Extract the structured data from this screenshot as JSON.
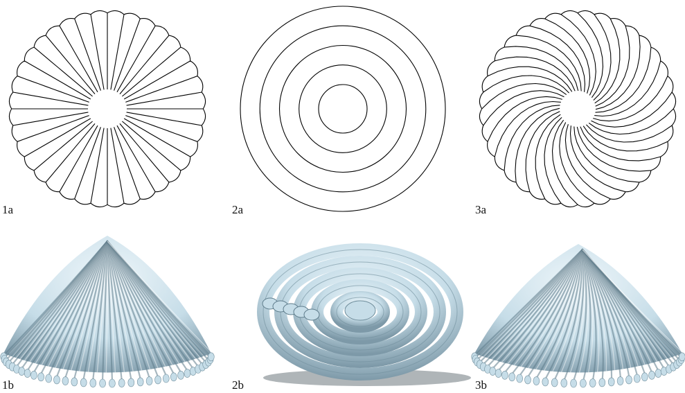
{
  "figure": {
    "panels": [
      {
        "id": "1a",
        "label": "1a",
        "pattern": "radial-petals",
        "petals": 36
      },
      {
        "id": "2a",
        "label": "2a",
        "pattern": "concentric-rings",
        "rings": 5
      },
      {
        "id": "3a",
        "label": "3a",
        "pattern": "spiral-petals",
        "petals": 36
      },
      {
        "id": "1b",
        "label": "1b",
        "render": "radial-ribbed-cone"
      },
      {
        "id": "2b",
        "label": "2b",
        "render": "concentric-coil-saddle"
      },
      {
        "id": "3b",
        "label": "3b",
        "render": "spiral-ribbed-cone"
      }
    ]
  },
  "colors": {
    "line": "#000000",
    "surface": "#c6dde8",
    "surface_dark": "#7d99a8",
    "surface_light": "#eef6fa"
  }
}
